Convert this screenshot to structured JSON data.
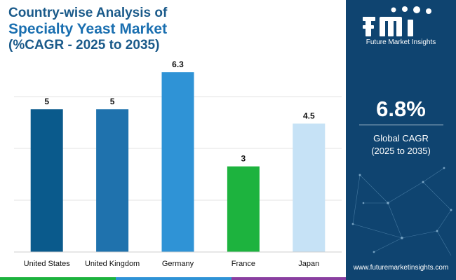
{
  "title": {
    "line1": "Country-wise Analysis of",
    "line2": "Specialty Yeast Market",
    "line3": "(%CAGR - 2025 to 2035)"
  },
  "chart_data": {
    "type": "bar",
    "categories": [
      "United States",
      "United Kingdom",
      "Germany",
      "France",
      "Japan"
    ],
    "values": [
      5,
      5,
      6.3,
      3,
      4.5
    ],
    "colors": [
      "#0a5a8c",
      "#1f72ad",
      "#2f93d6",
      "#1db33e",
      "#c6e2f6"
    ],
    "ylim": [
      0,
      6.5
    ],
    "grid": true
  },
  "panel": {
    "brand": "Future Market Insights",
    "cagr_value": "6.8%",
    "cagr_label": "Global CAGR",
    "cagr_period": "(2025 to 2035)",
    "website": "www.futuremarketinsights.com"
  },
  "colors": {
    "panel_bg": "#0f4470",
    "strip": [
      "#1db33e",
      "#2f93d6",
      "#8a3fa0"
    ]
  }
}
